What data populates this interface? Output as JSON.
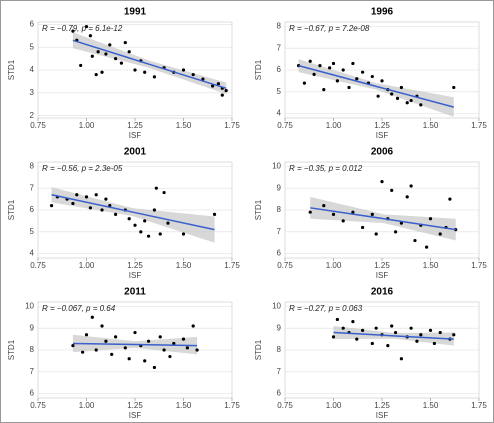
{
  "chart_data": [
    {
      "type": "scatter",
      "title": "1991",
      "annotation": "R = −0.79, p = 6.1e-12",
      "xlabel": "ISF",
      "ylabel": "STD1",
      "xlim": [
        0.75,
        1.75
      ],
      "xticks": [
        0.75,
        {
          "value": 1,
          "label": "1.00"
        },
        1.25,
        {
          "value": 1.5,
          "label": "1.50"
        },
        1.75
      ],
      "ylim": [
        1.9,
        6.1
      ],
      "yticks": [
        2,
        3,
        4,
        5,
        6
      ],
      "grid": true,
      "color": "#000000",
      "x": [
        0.93,
        0.95,
        0.97,
        1.0,
        1.02,
        1.03,
        1.05,
        1.06,
        1.08,
        1.1,
        1.12,
        1.15,
        1.18,
        1.2,
        1.22,
        1.25,
        1.28,
        1.3,
        1.35,
        1.4,
        1.45,
        1.5,
        1.55,
        1.6,
        1.65,
        1.68,
        1.7,
        1.72,
        1.7
      ],
      "values": [
        5.7,
        5.3,
        4.2,
        5.9,
        5.5,
        4.6,
        3.8,
        4.8,
        3.9,
        4.7,
        5.1,
        4.5,
        4.3,
        5.2,
        4.8,
        4.0,
        4.4,
        3.9,
        3.7,
        4.1,
        3.9,
        4.0,
        3.8,
        3.6,
        3.3,
        3.4,
        3.2,
        3.1,
        2.9
      ],
      "fit": {
        "color": "#3a5fcd",
        "band_color": "#c8c8c8",
        "x": [
          0.93,
          1.32,
          1.72
        ],
        "y": [
          5.3,
          4.26,
          3.2
        ],
        "lower": [
          4.95,
          4.1,
          2.95
        ],
        "upper": [
          5.65,
          4.42,
          3.45
        ]
      }
    },
    {
      "type": "scatter",
      "title": "1996",
      "annotation": "R = −0.67, p = 7.2e-08",
      "xlabel": "ISF",
      "ylabel": "STD1",
      "xlim": [
        0.75,
        1.75
      ],
      "xticks": [
        0.75,
        {
          "value": 1,
          "label": "1.00"
        },
        1.25,
        {
          "value": 1.5,
          "label": "1.50"
        },
        1.75
      ],
      "ylim": [
        3.8,
        8.2
      ],
      "yticks": [
        4,
        5,
        6,
        7,
        8
      ],
      "grid": true,
      "color": "#000000",
      "x": [
        0.82,
        0.85,
        0.88,
        0.9,
        0.93,
        0.95,
        0.98,
        1.0,
        1.02,
        1.05,
        1.08,
        1.1,
        1.12,
        1.15,
        1.18,
        1.2,
        1.23,
        1.25,
        1.28,
        1.3,
        1.33,
        1.35,
        1.38,
        1.4,
        1.43,
        1.45,
        1.62
      ],
      "values": [
        6.2,
        5.4,
        6.4,
        5.8,
        6.2,
        5.1,
        6.1,
        6.3,
        5.5,
        6.0,
        5.2,
        6.3,
        5.6,
        5.9,
        5.4,
        5.7,
        4.8,
        5.5,
        5.1,
        4.9,
        4.7,
        5.2,
        4.5,
        4.6,
        4.8,
        4.4,
        5.2
      ],
      "fit": {
        "color": "#3a5fcd",
        "band_color": "#c8c8c8",
        "x": [
          0.82,
          1.22,
          1.62
        ],
        "y": [
          6.2,
          5.25,
          4.3
        ],
        "lower": [
          5.9,
          5.1,
          3.85
        ],
        "upper": [
          6.5,
          5.4,
          4.75
        ]
      }
    },
    {
      "type": "scatter",
      "title": "2001",
      "annotation": "R = −0.56, p = 2.3e-05",
      "xlabel": "ISF",
      "ylabel": "STD1",
      "xlim": [
        0.75,
        1.75
      ],
      "xticks": [
        0.75,
        {
          "value": 1,
          "label": "1.00"
        },
        1.25,
        {
          "value": 1.5,
          "label": "1.50"
        },
        1.75
      ],
      "ylim": [
        3.8,
        8.2
      ],
      "yticks": [
        4,
        5,
        6,
        7,
        8
      ],
      "grid": true,
      "color": "#000000",
      "x": [
        0.82,
        0.85,
        0.9,
        0.93,
        0.95,
        1.0,
        1.02,
        1.05,
        1.08,
        1.1,
        1.12,
        1.15,
        1.2,
        1.22,
        1.25,
        1.28,
        1.3,
        1.32,
        1.35,
        1.36,
        1.38,
        1.4,
        1.42,
        1.5,
        1.66
      ],
      "values": [
        6.2,
        6.6,
        6.5,
        6.3,
        6.7,
        6.6,
        6.1,
        6.7,
        6.0,
        6.5,
        6.2,
        5.8,
        6.0,
        5.6,
        5.3,
        5.0,
        5.5,
        4.8,
        6.0,
        7.0,
        4.9,
        6.8,
        5.4,
        4.9,
        5.8
      ],
      "fit": {
        "color": "#3a5fcd",
        "band_color": "#c8c8c8",
        "x": [
          0.82,
          1.24,
          1.66
        ],
        "y": [
          6.7,
          5.9,
          5.1
        ],
        "lower": [
          6.35,
          5.72,
          4.5
        ],
        "upper": [
          7.05,
          6.08,
          5.7
        ]
      }
    },
    {
      "type": "scatter",
      "title": "2006",
      "annotation": "R = −0.35, p = 0.012",
      "xlabel": "ISF",
      "ylabel": "STD1",
      "xlim": [
        0.75,
        1.75
      ],
      "xticks": [
        0.75,
        {
          "value": 1,
          "label": "1.00"
        },
        1.25,
        {
          "value": 1.5,
          "label": "1.50"
        },
        1.75
      ],
      "ylim": [
        5.8,
        10.2
      ],
      "yticks": [
        6,
        7,
        8,
        9,
        10
      ],
      "grid": true,
      "color": "#000000",
      "x": [
        0.88,
        0.95,
        1.0,
        1.05,
        1.1,
        1.15,
        1.2,
        1.22,
        1.25,
        1.28,
        1.3,
        1.32,
        1.35,
        1.38,
        1.4,
        1.42,
        1.45,
        1.48,
        1.5,
        1.55,
        1.58,
        1.6,
        1.63
      ],
      "values": [
        7.9,
        8.2,
        7.8,
        7.5,
        7.9,
        7.2,
        7.8,
        6.9,
        9.3,
        7.6,
        8.9,
        7.0,
        7.4,
        8.6,
        9.1,
        6.6,
        7.3,
        6.3,
        7.6,
        6.9,
        7.2,
        8.5,
        7.1
      ],
      "fit": {
        "color": "#3a5fcd",
        "band_color": "#c8c8c8",
        "x": [
          0.88,
          1.26,
          1.63
        ],
        "y": [
          8.1,
          7.6,
          7.1
        ],
        "lower": [
          7.6,
          7.4,
          6.6
        ],
        "upper": [
          8.6,
          7.8,
          7.6
        ]
      }
    },
    {
      "type": "scatter",
      "title": "2011",
      "annotation": "R = −0.067, p = 0.64",
      "xlabel": "ISF",
      "ylabel": "STD1",
      "xlim": [
        0.75,
        1.75
      ],
      "xticks": [
        0.75,
        {
          "value": 1,
          "label": "1.00"
        },
        1.25,
        {
          "value": 1.5,
          "label": "1.50"
        },
        1.75
      ],
      "ylim": [
        5.8,
        10.2
      ],
      "yticks": [
        6,
        7,
        8,
        9,
        10
      ],
      "grid": true,
      "color": "#000000",
      "x": [
        0.93,
        0.98,
        1.0,
        1.03,
        1.05,
        1.08,
        1.1,
        1.13,
        1.15,
        1.2,
        1.22,
        1.25,
        1.28,
        1.3,
        1.32,
        1.35,
        1.38,
        1.4,
        1.43,
        1.45,
        1.5,
        1.52,
        1.55,
        1.57
      ],
      "values": [
        8.2,
        7.9,
        8.7,
        9.5,
        8.0,
        9.1,
        8.4,
        7.8,
        8.6,
        8.1,
        7.6,
        8.8,
        8.2,
        7.5,
        8.4,
        7.2,
        8.6,
        8.0,
        7.7,
        8.3,
        8.5,
        8.1,
        9.1,
        8.0
      ],
      "fit": {
        "color": "#3a5fcd",
        "band_color": "#c8c8c8",
        "x": [
          0.93,
          1.25,
          1.57
        ],
        "y": [
          8.3,
          8.25,
          8.2
        ],
        "lower": [
          7.9,
          8.1,
          7.8
        ],
        "upper": [
          8.7,
          8.4,
          8.6
        ]
      }
    },
    {
      "type": "scatter",
      "title": "2016",
      "annotation": "R = −0.27, p = 0.063",
      "xlabel": "ISF",
      "ylabel": "STD1",
      "xlim": [
        0.75,
        1.75
      ],
      "xticks": [
        0.75,
        {
          "value": 1,
          "label": "1.00"
        },
        1.25,
        {
          "value": 1.5,
          "label": "1.50"
        },
        1.75
      ],
      "ylim": [
        5.8,
        10.2
      ],
      "yticks": [
        6,
        7,
        8,
        9,
        10
      ],
      "grid": true,
      "color": "#000000",
      "x": [
        1.0,
        1.02,
        1.05,
        1.08,
        1.1,
        1.12,
        1.15,
        1.2,
        1.22,
        1.25,
        1.28,
        1.3,
        1.32,
        1.35,
        1.38,
        1.4,
        1.43,
        1.45,
        1.5,
        1.52,
        1.55,
        1.6,
        1.62
      ],
      "values": [
        8.6,
        9.4,
        9.0,
        8.8,
        9.3,
        8.5,
        8.9,
        8.3,
        9.0,
        8.7,
        8.2,
        9.1,
        8.8,
        7.6,
        8.6,
        9.0,
        8.4,
        8.7,
        8.9,
        8.3,
        8.8,
        8.5,
        8.7
      ],
      "fit": {
        "color": "#3a5fcd",
        "band_color": "#c8c8c8",
        "x": [
          1.0,
          1.31,
          1.62
        ],
        "y": [
          8.8,
          8.65,
          8.5
        ],
        "lower": [
          8.5,
          8.52,
          8.2
        ],
        "upper": [
          9.1,
          8.78,
          8.8
        ]
      }
    }
  ]
}
